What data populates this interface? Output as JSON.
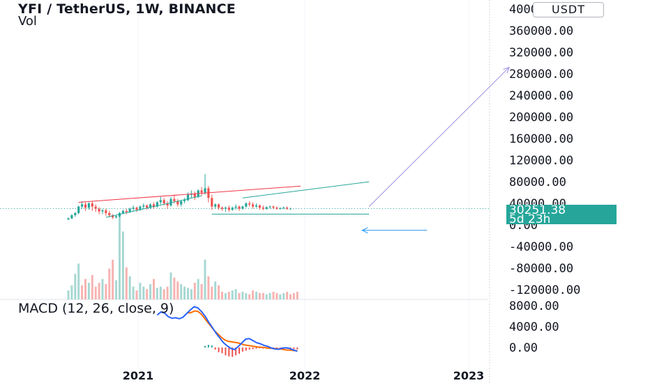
{
  "header": {
    "title": "YFI / TetherUS, 1W, BINANCE",
    "volume_label": "Vol"
  },
  "currency_badge": "USDT",
  "last_price": {
    "value": "30251.38",
    "countdown": "5d 23h",
    "color": "#26a69a"
  },
  "macd_label": "MACD (12, 26, close, 9)",
  "colors": {
    "up": "#26a69a",
    "down": "#ef5350",
    "macd_line": "#2962ff",
    "signal_line": "#ff6d00",
    "trendline_red": "#f23645",
    "trendline_teal": "#26a69a",
    "arrow_purple": "#9c8ee6",
    "arrow_blue": "#2196f3"
  },
  "chart_data": [
    {
      "type": "candlestick",
      "title": "YFI / TetherUS, 1W, BINANCE",
      "y_ticks": [
        "400000.00",
        "360000.00",
        "320000.00",
        "280000.00",
        "240000.00",
        "200000.00",
        "160000.00",
        "120000.00",
        "80000.00",
        "40000.00",
        "0.00",
        "-40000.00",
        "-80000.00",
        "-120000.00"
      ],
      "x_ticks": [
        "2021",
        "2022",
        "2023"
      ],
      "ylim": [
        -120000,
        400000
      ],
      "candles": [
        {
          "o": 10000,
          "h": 14000,
          "c": 12000,
          "l": 9000
        },
        {
          "o": 12000,
          "h": 20000,
          "c": 18000,
          "l": 11000
        },
        {
          "o": 18000,
          "h": 24000,
          "c": 22000,
          "l": 15000
        },
        {
          "o": 22000,
          "h": 36000,
          "c": 34000,
          "l": 20000
        },
        {
          "o": 34000,
          "h": 44000,
          "c": 38000,
          "l": 30000
        },
        {
          "o": 38000,
          "h": 42000,
          "c": 32000,
          "l": 26000
        },
        {
          "o": 32000,
          "h": 42000,
          "c": 40000,
          "l": 28000
        },
        {
          "o": 40000,
          "h": 44000,
          "c": 34000,
          "l": 26000
        },
        {
          "o": 34000,
          "h": 38000,
          "c": 30000,
          "l": 24000
        },
        {
          "o": 30000,
          "h": 33000,
          "c": 25000,
          "l": 20000
        },
        {
          "o": 25000,
          "h": 30000,
          "c": 27000,
          "l": 20000
        },
        {
          "o": 27000,
          "h": 30000,
          "c": 22000,
          "l": 17000
        },
        {
          "o": 22000,
          "h": 26000,
          "c": 18000,
          "l": 14000
        },
        {
          "o": 18000,
          "h": 20000,
          "c": 14000,
          "l": 11000
        },
        {
          "o": 14000,
          "h": 18000,
          "c": 16000,
          "l": 12000
        },
        {
          "o": 16000,
          "h": 24000,
          "c": 22000,
          "l": 14000
        },
        {
          "o": 22000,
          "h": 28000,
          "c": 26000,
          "l": 20000
        },
        {
          "o": 26000,
          "h": 30000,
          "c": 24000,
          "l": 20000
        },
        {
          "o": 24000,
          "h": 32000,
          "c": 30000,
          "l": 22000
        },
        {
          "o": 30000,
          "h": 36000,
          "c": 32000,
          "l": 26000
        },
        {
          "o": 32000,
          "h": 34000,
          "c": 28000,
          "l": 24000
        },
        {
          "o": 28000,
          "h": 36000,
          "c": 34000,
          "l": 26000
        },
        {
          "o": 34000,
          "h": 40000,
          "c": 36000,
          "l": 30000
        },
        {
          "o": 36000,
          "h": 38000,
          "c": 32000,
          "l": 28000
        },
        {
          "o": 32000,
          "h": 40000,
          "c": 38000,
          "l": 30000
        },
        {
          "o": 38000,
          "h": 42000,
          "c": 34000,
          "l": 30000
        },
        {
          "o": 34000,
          "h": 44000,
          "c": 42000,
          "l": 32000
        },
        {
          "o": 42000,
          "h": 52000,
          "c": 46000,
          "l": 38000
        },
        {
          "o": 46000,
          "h": 50000,
          "c": 40000,
          "l": 36000
        },
        {
          "o": 40000,
          "h": 44000,
          "c": 36000,
          "l": 30000
        },
        {
          "o": 36000,
          "h": 52000,
          "c": 48000,
          "l": 34000
        },
        {
          "o": 48000,
          "h": 56000,
          "c": 44000,
          "l": 40000
        },
        {
          "o": 44000,
          "h": 48000,
          "c": 38000,
          "l": 34000
        },
        {
          "o": 38000,
          "h": 46000,
          "c": 44000,
          "l": 34000
        },
        {
          "o": 44000,
          "h": 50000,
          "c": 46000,
          "l": 40000
        },
        {
          "o": 46000,
          "h": 60000,
          "c": 56000,
          "l": 44000
        },
        {
          "o": 56000,
          "h": 64000,
          "c": 58000,
          "l": 50000
        },
        {
          "o": 58000,
          "h": 62000,
          "c": 52000,
          "l": 46000
        },
        {
          "o": 52000,
          "h": 66000,
          "c": 64000,
          "l": 50000
        },
        {
          "o": 64000,
          "h": 70000,
          "c": 60000,
          "l": 54000
        },
        {
          "o": 60000,
          "h": 94000,
          "c": 68000,
          "l": 56000
        },
        {
          "o": 68000,
          "h": 72000,
          "c": 50000,
          "l": 42000
        },
        {
          "o": 50000,
          "h": 56000,
          "c": 34000,
          "l": 28000
        },
        {
          "o": 34000,
          "h": 40000,
          "c": 38000,
          "l": 30000
        },
        {
          "o": 38000,
          "h": 40000,
          "c": 32000,
          "l": 28000
        },
        {
          "o": 32000,
          "h": 34000,
          "c": 30000,
          "l": 26000
        },
        {
          "o": 30000,
          "h": 34000,
          "c": 32000,
          "l": 24000
        },
        {
          "o": 32000,
          "h": 36000,
          "c": 28000,
          "l": 24000
        },
        {
          "o": 28000,
          "h": 34000,
          "c": 32000,
          "l": 26000
        },
        {
          "o": 32000,
          "h": 38000,
          "c": 34000,
          "l": 28000
        },
        {
          "o": 34000,
          "h": 36000,
          "c": 30000,
          "l": 26000
        },
        {
          "o": 30000,
          "h": 36000,
          "c": 34000,
          "l": 28000
        },
        {
          "o": 34000,
          "h": 42000,
          "c": 40000,
          "l": 32000
        },
        {
          "o": 40000,
          "h": 44000,
          "c": 38000,
          "l": 34000
        },
        {
          "o": 38000,
          "h": 42000,
          "c": 34000,
          "l": 30000
        },
        {
          "o": 34000,
          "h": 40000,
          "c": 36000,
          "l": 32000
        },
        {
          "o": 36000,
          "h": 38000,
          "c": 32000,
          "l": 28000
        },
        {
          "o": 32000,
          "h": 36000,
          "c": 30000,
          "l": 27000
        },
        {
          "o": 30000,
          "h": 34000,
          "c": 33000,
          "l": 28000
        },
        {
          "o": 33000,
          "h": 36000,
          "c": 34000,
          "l": 30000
        },
        {
          "o": 34000,
          "h": 36000,
          "c": 32000,
          "l": 29000
        },
        {
          "o": 32000,
          "h": 34000,
          "c": 30000,
          "l": 28000
        },
        {
          "o": 30000,
          "h": 33000,
          "c": 31000,
          "l": 28000
        },
        {
          "o": 31000,
          "h": 34000,
          "c": 32000,
          "l": 29000
        },
        {
          "o": 32000,
          "h": 34000,
          "c": 30000,
          "l": 28000
        },
        {
          "o": 30000,
          "h": 32000,
          "c": 30251,
          "l": 28000
        }
      ],
      "price_line": 30251.38,
      "trendlines": [
        {
          "color": "red",
          "from": [
            3,
            42000
          ],
          "to": [
            68,
            72000
          ]
        },
        {
          "color": "teal",
          "from": [
            11,
            14000
          ],
          "to": [
            39,
            54000
          ]
        },
        {
          "color": "teal",
          "from": [
            51,
            50000
          ],
          "to": [
            88,
            80000
          ]
        },
        {
          "color": "teal",
          "from": [
            42,
            20000
          ],
          "to": [
            88,
            20000
          ]
        }
      ],
      "arrows": [
        {
          "color": "purple",
          "from": [
            88,
            34000
          ],
          "to": [
            129,
            292000
          ]
        },
        {
          "color": "blue",
          "from": [
            105,
            -10000
          ],
          "to": [
            86,
            -10000
          ]
        }
      ]
    },
    {
      "type": "bar",
      "title": "Vol",
      "values": [
        14,
        22,
        40,
        56,
        22,
        32,
        26,
        38,
        20,
        26,
        32,
        24,
        48,
        62,
        30,
        130,
        106,
        50,
        36,
        20,
        14,
        26,
        20,
        16,
        24,
        32,
        18,
        20,
        16,
        20,
        42,
        34,
        28,
        24,
        20,
        18,
        16,
        26,
        32,
        24,
        62,
        36,
        20,
        28,
        22,
        12,
        10,
        12,
        14,
        16,
        10,
        12,
        10,
        8,
        14,
        12,
        10,
        10,
        8,
        10,
        12,
        10,
        8,
        10,
        12,
        8,
        10,
        12
      ],
      "up": [
        1,
        1,
        1,
        1,
        0,
        0,
        1,
        0,
        0,
        0,
        1,
        0,
        0,
        0,
        1,
        1,
        1,
        0,
        1,
        1,
        0,
        1,
        1,
        0,
        1,
        0,
        1,
        1,
        0,
        0,
        1,
        0,
        0,
        1,
        1,
        1,
        1,
        0,
        1,
        0,
        1,
        0,
        0,
        1,
        0,
        0,
        1,
        0,
        1,
        1,
        0,
        1,
        1,
        0,
        0,
        1,
        0,
        0,
        1,
        1,
        0,
        0,
        1,
        1,
        0,
        0,
        0,
        0
      ]
    },
    {
      "type": "line",
      "title": "MACD (12, 26, close, 9)",
      "y_ticks": [
        "8000.00",
        "4000.00",
        "0.00"
      ],
      "macd": [
        6200,
        6800,
        6600,
        5900,
        5600,
        5700,
        5500,
        5800,
        6500,
        7200,
        7800,
        7600,
        6900,
        6000,
        4800,
        3800,
        2700,
        1800,
        900,
        300,
        -200,
        -400,
        200,
        900,
        1600,
        1700,
        1300,
        900,
        700,
        400,
        200,
        -100,
        -300,
        -350,
        -100,
        -50,
        -200,
        -500,
        -700
      ],
      "signal": [
        6600,
        6700,
        7000,
        6900,
        6400,
        5600,
        4800,
        4000,
        3200,
        2600,
        2000,
        1500,
        1200,
        1100,
        1000,
        900,
        700,
        500,
        400,
        300,
        200,
        100,
        50,
        0,
        -100,
        -150,
        -200,
        -250,
        -300,
        -400,
        -500,
        -500,
        -600,
        -600
      ],
      "macd_start": 0,
      "signal_start": 9,
      "histogram": [
        0,
        0,
        0,
        0,
        0,
        0,
        0,
        0,
        0,
        0,
        0,
        0,
        0,
        0,
        0,
        0,
        0,
        0,
        0,
        0,
        0,
        0,
        0,
        0,
        0,
        0,
        0,
        0,
        0,
        0,
        0,
        0,
        0,
        0,
        0,
        0,
        0,
        0,
        0,
        0,
        300,
        500,
        400,
        -400,
        -900,
        -1100,
        -1500,
        -1700,
        -1800,
        -1500,
        -1200,
        -800,
        -600,
        -400,
        -300,
        -200,
        -150,
        -200,
        -250,
        -300,
        -350,
        -400,
        -350,
        -300,
        -250,
        -200,
        -300,
        -350
      ]
    }
  ]
}
